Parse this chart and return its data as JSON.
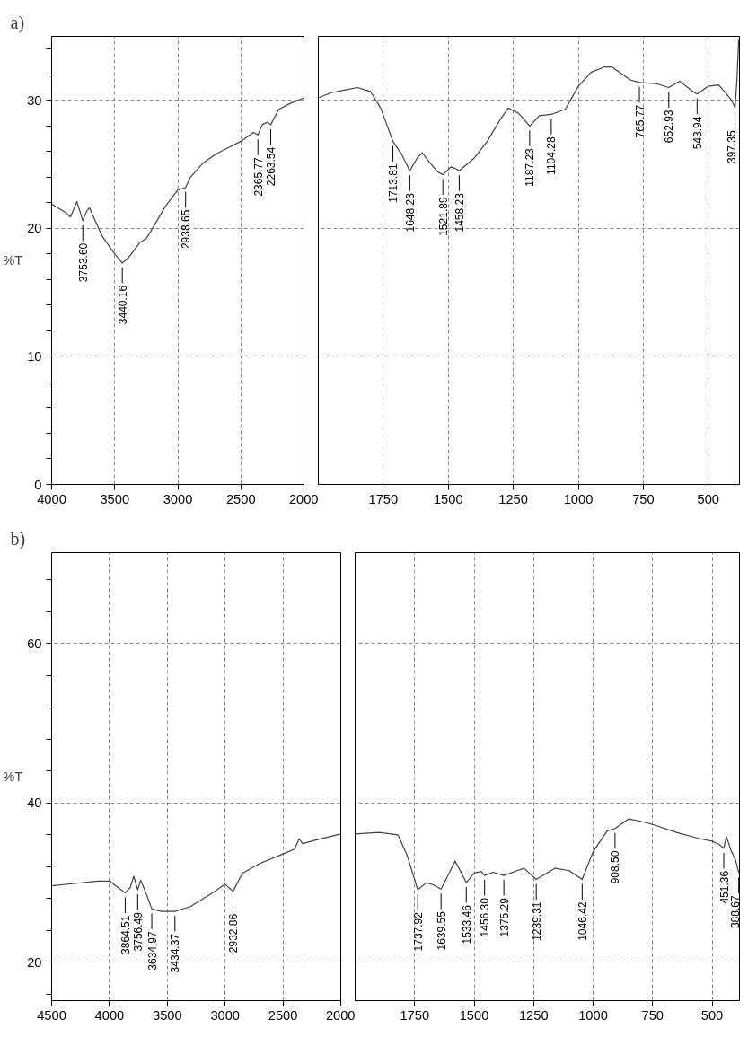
{
  "chart_data": [
    {
      "type": "line",
      "title": "a)",
      "ylabel": "%T",
      "x": [
        4000,
        3900,
        3850,
        3800,
        3753,
        3720,
        3700,
        3650,
        3600,
        3500,
        3440,
        3400,
        3300,
        3250,
        3200,
        3100,
        3000,
        2938,
        2900,
        2800,
        2700,
        2600,
        2500,
        2400,
        2365,
        2330,
        2290,
        2263,
        2200,
        2100,
        2000
      ],
      "series": [
        {
          "color": "#404040",
          "values": [
            21.9,
            21.3,
            20.9,
            22.1,
            20.6,
            21.4,
            21.6,
            20.5,
            19.4,
            18.0,
            17.3,
            17.6,
            18.9,
            19.2,
            20.0,
            21.7,
            23.0,
            23.2,
            24.0,
            25.1,
            25.8,
            26.3,
            26.8,
            27.5,
            27.3,
            28.1,
            28.3,
            28.1,
            29.3,
            29.8,
            30.2
          ]
        }
      ],
      "xlim": [
        4000,
        2000
      ],
      "xticks": [
        4000,
        3500,
        3000,
        2500,
        2000
      ],
      "ylim": [
        0,
        35
      ],
      "yticks": [
        0,
        {
          "value": 2,
          "label": null
        },
        {
          "value": 4,
          "label": null
        },
        {
          "value": 6,
          "label": null
        },
        {
          "value": 8,
          "label": null
        },
        10,
        {
          "value": 12,
          "label": null
        },
        {
          "value": 14,
          "label": null
        },
        {
          "value": 16,
          "label": null
        },
        {
          "value": 18,
          "label": null
        },
        20,
        {
          "value": 22,
          "label": null
        },
        {
          "value": 24,
          "label": null
        },
        {
          "value": 26,
          "label": null
        },
        {
          "value": 28,
          "label": null
        },
        30,
        {
          "value": 32,
          "label": null
        },
        {
          "value": 34,
          "label": null
        }
      ],
      "grid": true,
      "line_style": "solid",
      "annotations": [
        {
          "text": "3753.60",
          "x": 3753,
          "y": 20.6
        },
        {
          "text": "3440.16",
          "x": 3440,
          "y": 17.3
        },
        {
          "text": "2938.65",
          "x": 2938,
          "y": 23.2
        },
        {
          "text": "2365.77",
          "x": 2365,
          "y": 27.3
        },
        {
          "text": "2263.54",
          "x": 2263,
          "y": 28.1
        }
      ]
    },
    {
      "type": "line",
      "tick_labels": "x",
      "x": [
        2000,
        1950,
        1900,
        1850,
        1800,
        1760,
        1713,
        1680,
        1648,
        1620,
        1600,
        1570,
        1540,
        1521,
        1490,
        1475,
        1458,
        1400,
        1350,
        1300,
        1270,
        1230,
        1187,
        1150,
        1104,
        1050,
        1000,
        950,
        900,
        870,
        800,
        765,
        700,
        652,
        610,
        560,
        543,
        500,
        460,
        430,
        410,
        397,
        390,
        383
      ],
      "series": [
        {
          "color": "#404040",
          "values": [
            30.2,
            30.6,
            30.8,
            31.0,
            30.7,
            29.4,
            26.8,
            25.8,
            24.5,
            25.5,
            25.9,
            25.1,
            24.4,
            24.2,
            24.8,
            24.7,
            24.5,
            25.5,
            26.8,
            28.5,
            29.4,
            29.0,
            28.0,
            28.8,
            28.9,
            29.3,
            31.1,
            32.2,
            32.6,
            32.6,
            31.6,
            31.4,
            31.3,
            31.0,
            31.5,
            30.7,
            30.5,
            31.1,
            31.2,
            30.5,
            30.0,
            29.4,
            31.5,
            34.8
          ]
        }
      ],
      "xlim": [
        2000,
        380
      ],
      "xticks": [
        1750,
        1500,
        1250,
        1000,
        750,
        500
      ],
      "ylim": [
        0,
        35
      ],
      "yticks": [
        0,
        10,
        20,
        30
      ],
      "grid": true,
      "line_style": "solid",
      "annotations": [
        {
          "text": "1713.81",
          "x": 1713,
          "y": 26.8
        },
        {
          "text": "1648.23",
          "x": 1648,
          "y": 24.5
        },
        {
          "text": "1521.89",
          "x": 1521,
          "y": 24.2
        },
        {
          "text": "1458.23",
          "x": 1458,
          "y": 24.5
        },
        {
          "text": "1187.23",
          "x": 1187,
          "y": 28.0
        },
        {
          "text": "1104.28",
          "x": 1104,
          "y": 28.9
        },
        {
          "text": "765.77",
          "x": 765,
          "y": 31.4
        },
        {
          "text": "652.93",
          "x": 652,
          "y": 31.0
        },
        {
          "text": "543.94",
          "x": 543,
          "y": 30.5
        },
        {
          "text": "397.35",
          "x": 397,
          "y": 29.4
        }
      ]
    },
    {
      "type": "line",
      "title": "b)",
      "ylabel": "%T",
      "x": [
        4500,
        4300,
        4100,
        4000,
        3900,
        3864,
        3820,
        3790,
        3756,
        3730,
        3680,
        3634,
        3550,
        3434,
        3300,
        3100,
        3000,
        2932,
        2850,
        2700,
        2500,
        2400,
        2360,
        2330,
        2200,
        2000
      ],
      "series": [
        {
          "color": "#404040",
          "values": [
            29.6,
            29.9,
            30.2,
            30.2,
            29.1,
            28.7,
            29.4,
            30.8,
            29.1,
            30.3,
            28.5,
            26.7,
            26.4,
            26.4,
            27.0,
            28.8,
            29.8,
            28.9,
            31.2,
            32.4,
            33.6,
            34.2,
            35.5,
            34.9,
            35.4,
            36.1
          ]
        }
      ],
      "xlim": [
        4500,
        2000
      ],
      "xticks": [
        4500,
        4000,
        3500,
        3000,
        2500,
        2000
      ],
      "ylim": [
        15.2,
        71.4
      ],
      "yticks": [
        {
          "value": 16,
          "label": null
        },
        20,
        {
          "value": 24,
          "label": null
        },
        {
          "value": 28,
          "label": null
        },
        {
          "value": 32,
          "label": null
        },
        {
          "value": 36,
          "label": null
        },
        40,
        {
          "value": 44,
          "label": null
        },
        {
          "value": 48,
          "label": null
        },
        {
          "value": 52,
          "label": null
        },
        {
          "value": 56,
          "label": null
        },
        60,
        {
          "value": 64,
          "label": null
        },
        {
          "value": 68,
          "label": null
        }
      ],
      "grid": true,
      "line_style": "solid",
      "annotations": [
        {
          "text": "3864.51",
          "x": 3864,
          "y": 28.7
        },
        {
          "text": "3756.49",
          "x": 3756,
          "y": 29.1
        },
        {
          "text": "3634.97",
          "x": 3634,
          "y": 26.7
        },
        {
          "text": "3434.37",
          "x": 3434,
          "y": 26.4
        },
        {
          "text": "2932.86",
          "x": 2932,
          "y": 28.9
        }
      ]
    },
    {
      "type": "line",
      "tick_labels": "x",
      "x": [
        2000,
        1900,
        1820,
        1780,
        1737,
        1700,
        1670,
        1639,
        1600,
        1580,
        1560,
        1533,
        1500,
        1470,
        1456,
        1420,
        1375,
        1320,
        1290,
        1239,
        1160,
        1100,
        1046,
        1000,
        940,
        908,
        850,
        800,
        750,
        650,
        550,
        500,
        470,
        451,
        440,
        420,
        400,
        388
      ],
      "series": [
        {
          "color": "#404040",
          "values": [
            36.1,
            36.3,
            36.0,
            33.3,
            29.1,
            30.0,
            29.7,
            29.2,
            31.5,
            32.7,
            31.6,
            30.0,
            31.2,
            31.4,
            30.9,
            31.3,
            30.9,
            31.5,
            31.8,
            30.4,
            31.8,
            31.5,
            30.4,
            33.9,
            36.5,
            36.8,
            38.0,
            37.7,
            37.3,
            36.3,
            35.5,
            35.2,
            34.8,
            34.3,
            35.8,
            34.0,
            32.7,
            31.2
          ]
        }
      ],
      "xlim": [
        2000,
        385
      ],
      "xticks": [
        1750,
        1500,
        1250,
        1000,
        750,
        500
      ],
      "ylim": [
        15.2,
        71.4
      ],
      "yticks": [
        20,
        40,
        60
      ],
      "grid": true,
      "line_style": "solid",
      "annotations": [
        {
          "text": "1737.92",
          "x": 1737,
          "y": 29.1
        },
        {
          "text": "1639.55",
          "x": 1639,
          "y": 29.2
        },
        {
          "text": "1533.46",
          "x": 1533,
          "y": 30.0
        },
        {
          "text": "1456.30",
          "x": 1456,
          "y": 30.9
        },
        {
          "text": "1375.29",
          "x": 1375,
          "y": 30.9
        },
        {
          "text": "1239.31",
          "x": 1239,
          "y": 30.4
        },
        {
          "text": "1046.42",
          "x": 1046,
          "y": 30.4
        },
        {
          "text": "908.50",
          "x": 908,
          "y": 36.8
        },
        {
          "text": "451.36",
          "x": 451,
          "y": 34.3
        },
        {
          "text": "388.67",
          "x": 388,
          "y": 31.2
        }
      ]
    }
  ]
}
